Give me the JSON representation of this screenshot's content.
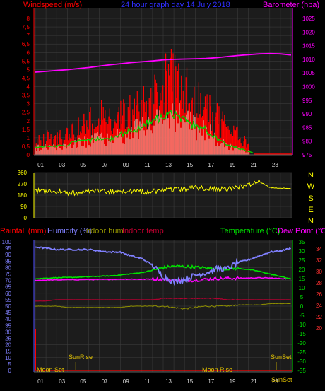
{
  "header": {
    "windspeed_label": "Windspeed (m/s)",
    "title": "24 hour graph day  14 July 2018",
    "barometer_label": "Barometer (hpa)"
  },
  "bottom_header": {
    "rainfall_label": "Rainfall (mm)",
    "humidity_label": "Humidity (%)",
    "indoor_hum_label": "Indoor hum",
    "indoor_temp_label": "Indoor temp",
    "temperature_label": "Temperature (°C)",
    "dewpoint_label": "Dew Point (°C)"
  },
  "compass": [
    "N",
    "W",
    "S",
    "E",
    "N"
  ],
  "events": {
    "moon_set": "Moon Set",
    "sunrise": "SunRise",
    "moon_rise": "Moon Rise",
    "sunset_1": "SunSet",
    "sunset_2": "SunSet"
  },
  "colors": {
    "wind": "#ff0000",
    "wind_avg": "#00d000",
    "gust_white": "#e8f5e0",
    "barometer": "#ff00ff",
    "direction": "#ffff00",
    "humidity": "#8080ff",
    "temperature": "#00e000",
    "dewpoint": "#ff00ff",
    "indoor_temp": "#b00030",
    "indoor_hum": "#909000",
    "rain": "#ff0000",
    "panel": "#1c1c1c",
    "grid": "#404040"
  },
  "chart_data": [
    {
      "type": "line",
      "title": "24 hour graph day  14 July 2018",
      "ylabel": "Windspeed (m/s)",
      "y2label": "Barometer (hpa)",
      "x_ticks": [
        "01",
        "03",
        "05",
        "07",
        "09",
        "11",
        "13",
        "15",
        "17",
        "19",
        "21",
        "23"
      ],
      "ylim": [
        0,
        8
      ],
      "y_ticks": [
        "0",
        "0,5",
        "1",
        "1,5",
        "2",
        "2,5",
        "3",
        "3,5",
        "4",
        "4,5",
        "5",
        "5,5",
        "6",
        "6,5",
        "7",
        "7,5",
        "8"
      ],
      "y2lim": [
        975,
        1025
      ],
      "y2_ticks": [
        "975",
        "980",
        "985",
        "990",
        "995",
        "1000",
        "1005",
        "1010",
        "1015",
        "1020",
        "1025"
      ],
      "x": [
        0,
        1,
        2,
        3,
        4,
        5,
        6,
        7,
        8,
        9,
        10,
        11,
        12,
        13,
        14,
        15,
        16,
        17,
        18,
        19,
        20,
        21,
        22,
        23,
        24
      ],
      "series": [
        {
          "name": "Barometer (hpa)",
          "values": [
            1005.3,
            1005.6,
            1005.9,
            1006.2,
            1006.6,
            1007.0,
            1007.5,
            1008.0,
            1008.4,
            1008.8,
            1009.1,
            1009.4,
            1009.8,
            1010.0,
            1010.1,
            1010.2,
            1010.3,
            1010.6,
            1011.0,
            1011.4,
            1011.7,
            1012.0,
            1012.1,
            1012.0,
            1011.6
          ]
        },
        {
          "name": "Windspeed (m/s)",
          "values": [
            0.9,
            1.2,
            1.1,
            1.4,
            1.8,
            2.1,
            2.6,
            2.3,
            2.5,
            2.9,
            3.3,
            4.2,
            4.6,
            4.9,
            4.3,
            3.7,
            3.2,
            2.4,
            1.7,
            1.3,
            0.7,
            0.1,
            0.0,
            0.0,
            0.0
          ]
        },
        {
          "name": "Average",
          "values": [
            0.4,
            0.5,
            0.5,
            0.6,
            0.8,
            0.8,
            1.0,
            0.9,
            1.2,
            1.4,
            1.6,
            2.0,
            2.2,
            2.4,
            2.0,
            1.7,
            1.5,
            1.0,
            0.6,
            0.4,
            0.2,
            0.0,
            0.0,
            0.0,
            0.0
          ]
        }
      ]
    },
    {
      "type": "line",
      "ylim": [
        0,
        360
      ],
      "y_ticks": [
        "0",
        "90",
        "180",
        "270",
        "360"
      ],
      "x": [
        0,
        1,
        2,
        3,
        4,
        5,
        6,
        7,
        8,
        9,
        10,
        11,
        12,
        13,
        14,
        15,
        16,
        17,
        18,
        19,
        20,
        21,
        22,
        23,
        24
      ],
      "series": [
        {
          "name": "Wind direction",
          "values": [
            215,
            205,
            210,
            200,
            195,
            210,
            215,
            205,
            210,
            215,
            205,
            210,
            220,
            225,
            230,
            240,
            235,
            230,
            225,
            240,
            265,
            290,
            240,
            235,
            235
          ]
        }
      ]
    },
    {
      "type": "line",
      "ylabel": "Rainfall (mm) / Humidity (%)",
      "y2label": "Temperature (°C) / Dew Point (°C)",
      "x_ticks": [
        "01",
        "03",
        "05",
        "07",
        "09",
        "11",
        "13",
        "15",
        "17",
        "19",
        "21",
        "23"
      ],
      "ylim": [
        0,
        100
      ],
      "y_ticks": [
        "0",
        "5",
        "10",
        "15",
        "20",
        "25",
        "30",
        "35",
        "40",
        "45",
        "50",
        "55",
        "60",
        "65",
        "70",
        "75",
        "80",
        "85",
        "90",
        "95",
        "100"
      ],
      "y2lim": [
        -35,
        35
      ],
      "y2_ticks": [
        "-35",
        "-30",
        "-25",
        "-20",
        "-15",
        "-10",
        "-5",
        "0",
        "5",
        "10",
        "15",
        "20",
        "25",
        "30",
        "35"
      ],
      "y3_ticks": [
        "20",
        "22",
        "24",
        "26",
        "28",
        "30",
        "32",
        "34"
      ],
      "x": [
        0,
        1,
        2,
        3,
        4,
        5,
        6,
        7,
        8,
        9,
        10,
        11,
        12,
        13,
        14,
        15,
        16,
        17,
        18,
        19,
        20,
        21,
        22,
        23,
        24
      ],
      "series": [
        {
          "name": "Humidity (%)",
          "values": [
            96,
            95,
            94,
            94,
            94,
            94,
            93,
            92,
            92,
            89,
            87,
            82,
            73,
            69,
            71,
            74,
            76,
            79,
            79,
            84,
            86,
            89,
            92,
            93,
            95
          ]
        },
        {
          "name": "Temperature (°C)",
          "values": [
            15.0,
            15.2,
            15.5,
            15.6,
            15.8,
            16.0,
            16.3,
            16.5,
            17.0,
            17.6,
            18.3,
            19.5,
            21.0,
            21.8,
            21.6,
            21.2,
            20.8,
            20.5,
            20.4,
            20.5,
            20.0,
            19.0,
            17.5,
            16.2,
            14.8
          ]
        },
        {
          "name": "Dew Point (°C)",
          "values": [
            14.0,
            14.2,
            14.3,
            14.4,
            14.4,
            14.5,
            14.5,
            14.6,
            14.7,
            14.7,
            14.6,
            14.8,
            14.5,
            14.2,
            13.8,
            14.1,
            14.6,
            15.0,
            15.1,
            15.2,
            15.3,
            15.4,
            15.3,
            15.0,
            14.8
          ]
        },
        {
          "name": "Indoor temp",
          "values": [
            54,
            54,
            55,
            55,
            55,
            55,
            55,
            55,
            55,
            55,
            55,
            55,
            56,
            56,
            56,
            56,
            56,
            56,
            55,
            55,
            55,
            55,
            55,
            55,
            55
          ]
        },
        {
          "name": "Indoor hum",
          "values": [
            50,
            50,
            50,
            49,
            49,
            49,
            49,
            49,
            49,
            50,
            50,
            50,
            50,
            49,
            48,
            49,
            50,
            50,
            50,
            51,
            51,
            51,
            52,
            52,
            52
          ]
        },
        {
          "name": "Rainfall (mm)",
          "values": [
            32,
            0,
            0,
            0,
            0,
            0,
            0,
            0,
            0,
            0,
            0,
            0,
            0,
            0,
            0,
            0,
            0,
            0,
            0,
            0,
            0,
            0,
            0,
            0,
            0
          ]
        }
      ]
    }
  ]
}
